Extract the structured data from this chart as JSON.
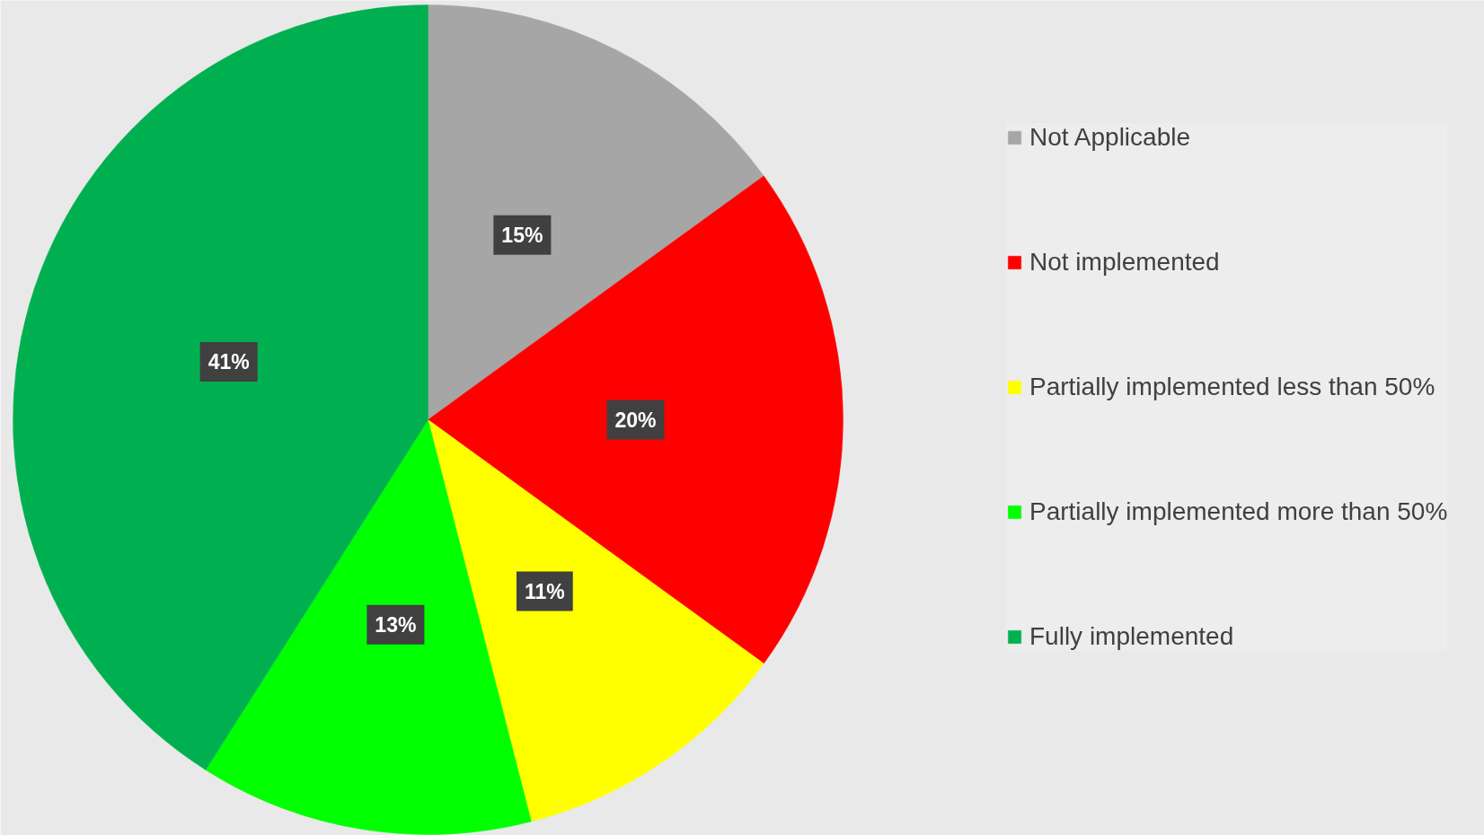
{
  "chart_data": {
    "type": "pie",
    "categories": [
      "Not Applicable",
      "Not implemented",
      "Partially implemented less than 50%",
      "Partially implemented more than 50%",
      "Fully implemented"
    ],
    "values": [
      15,
      20,
      11,
      13,
      41
    ],
    "colors": [
      "#a6a6a6",
      "#ff0000",
      "#ffff00",
      "#00ff00",
      "#00b050"
    ],
    "value_labels": [
      "15%",
      "20%",
      "11%",
      "13%",
      "41%"
    ],
    "legend": "right"
  }
}
